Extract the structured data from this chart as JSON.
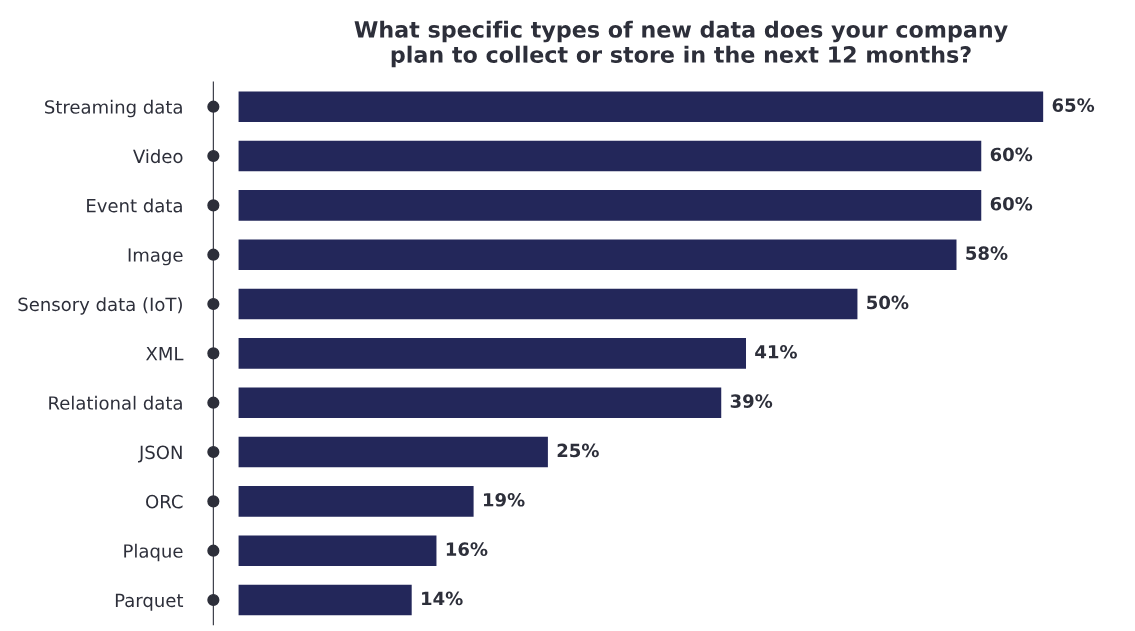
{
  "chart_data": {
    "type": "bar",
    "orientation": "horizontal",
    "title": "What specific types of new data does your company\nplan to collect or store in the next 12 months?",
    "categories": [
      "Streaming data",
      "Video",
      "Event data",
      "Image",
      "Sensory data (IoT)",
      "XML",
      "Relational data",
      "JSON",
      "ORC",
      "Plaque",
      "Parquet"
    ],
    "values": [
      65,
      60,
      60,
      58,
      50,
      41,
      39,
      25,
      19,
      16,
      14
    ],
    "value_labels": [
      "65%",
      "60%",
      "60%",
      "58%",
      "50%",
      "41%",
      "39%",
      "25%",
      "19%",
      "16%",
      "14%"
    ],
    "color": "#23275a",
    "tick_labels": "y",
    "grid": false,
    "legend": false
  }
}
